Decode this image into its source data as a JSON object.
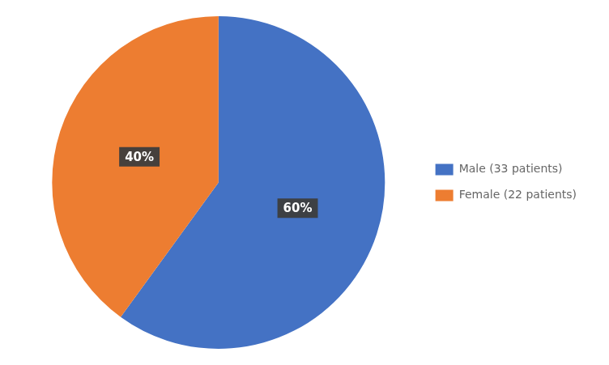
{
  "chart_data": {
    "type": "pie",
    "categories": [
      "Male (33 patients)",
      "Female (22 patients)"
    ],
    "values": [
      60,
      40
    ],
    "value_labels": [
      "60%",
      "40%"
    ],
    "colors": [
      "#4472C4",
      "#ED7D31"
    ],
    "data_labels": true,
    "legend": "right"
  }
}
